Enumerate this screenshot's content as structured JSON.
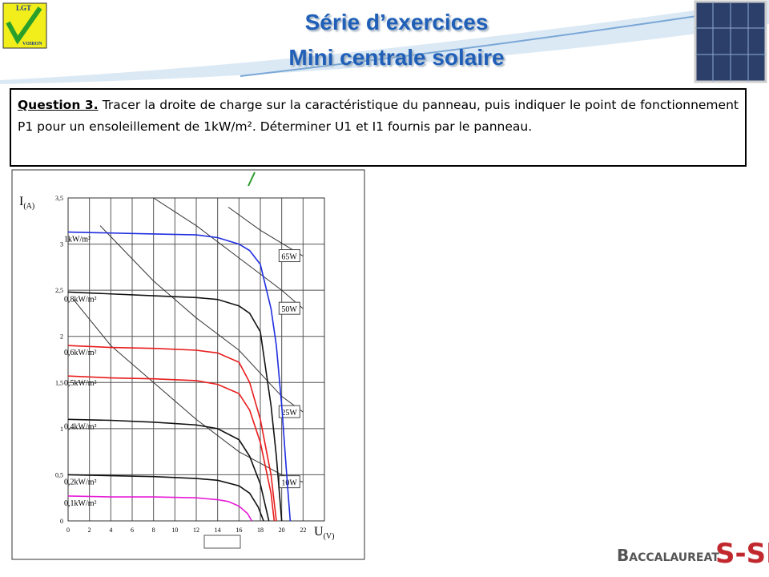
{
  "header": {
    "logo_top": "LGT",
    "logo_bottom": "VOIRON",
    "title_line1": "Série d’exercices",
    "title_line2": "Mini centrale solaire"
  },
  "question": {
    "label": "Question 3.",
    "text": "Tracer la droite de charge sur la caractéristique du panneau, puis indiquer le point de fonctionnement P1 pour un ensoleillement de 1kW/m². Déterminer U1 et I1 fournis par le panneau."
  },
  "footer": {
    "left": "Baccalaureat",
    "right": "S-SI"
  },
  "chart_data": {
    "type": "line",
    "y_label": {
      "main": "I",
      "sub": "(A)"
    },
    "x_label": {
      "main": "U",
      "sub": "(V)"
    },
    "xlim": [
      0,
      24
    ],
    "xticks": [
      0,
      2,
      4,
      6,
      8,
      10,
      12,
      14,
      16,
      18,
      20,
      22
    ],
    "ylim": [
      0,
      3.5
    ],
    "yticks": [
      0,
      {
        "value": 0.5,
        "label": "0,5"
      },
      1,
      {
        "value": 1.5,
        "label": "1,5"
      },
      2,
      {
        "value": 2.5,
        "label": "2,5"
      },
      3,
      {
        "value": 3.5,
        "label": "3,5"
      }
    ],
    "grid": true,
    "series": [
      {
        "name": "1kW/m²",
        "color": "#1f2ee0",
        "x": [
          0,
          4,
          8,
          12,
          14,
          16,
          17,
          18,
          19,
          19.5,
          20,
          20.5,
          20.8
        ],
        "values": [
          3.13,
          3.12,
          3.11,
          3.1,
          3.07,
          3.0,
          2.93,
          2.78,
          2.3,
          1.9,
          1.25,
          0.45,
          0
        ]
      },
      {
        "name": "0,8kW/m²",
        "color": "#111111",
        "x": [
          0,
          4,
          8,
          12,
          14,
          16,
          17,
          18,
          19,
          19.5,
          20
        ],
        "values": [
          2.48,
          2.46,
          2.44,
          2.42,
          2.4,
          2.33,
          2.25,
          2.05,
          1.25,
          0.7,
          0
        ]
      },
      {
        "name": "0,6kW/m²",
        "color": "#e81c1c",
        "x": [
          0,
          4,
          8,
          12,
          14,
          16,
          17,
          18,
          19,
          19.5
        ],
        "values": [
          1.9,
          1.88,
          1.87,
          1.85,
          1.82,
          1.72,
          1.5,
          1.1,
          0.5,
          0
        ]
      },
      {
        "name": "0,5kW/m²",
        "color": "#e81c1c",
        "x": [
          0,
          4,
          8,
          12,
          14,
          16,
          17,
          18,
          19,
          19.3
        ],
        "values": [
          1.57,
          1.55,
          1.54,
          1.52,
          1.48,
          1.38,
          1.2,
          0.85,
          0.3,
          0
        ]
      },
      {
        "name": "0,4kW/m²",
        "color": "#111111",
        "x": [
          0,
          4,
          8,
          12,
          14,
          16,
          17,
          18,
          18.8
        ],
        "values": [
          1.1,
          1.09,
          1.07,
          1.04,
          1.0,
          0.88,
          0.7,
          0.4,
          0
        ]
      },
      {
        "name": "0,2kW/m²",
        "color": "#111111",
        "x": [
          0,
          4,
          8,
          12,
          14,
          16,
          17,
          17.8,
          18.3
        ],
        "values": [
          0.5,
          0.49,
          0.48,
          0.46,
          0.44,
          0.38,
          0.3,
          0.15,
          0
        ]
      },
      {
        "name": "0,1kW/m²",
        "color": "#e619d6",
        "x": [
          0,
          4,
          8,
          12,
          14,
          15,
          16,
          16.8,
          17.2
        ],
        "values": [
          0.27,
          0.26,
          0.26,
          0.25,
          0.23,
          0.21,
          0.16,
          0.08,
          0
        ]
      }
    ],
    "power_curves": [
      {
        "name": "65W",
        "color": "#333333",
        "x": [
          15,
          18,
          22
        ],
        "values": [
          3.4,
          3.15,
          2.87
        ]
      },
      {
        "name": "50W",
        "color": "#333333",
        "x": [
          8,
          12,
          16,
          20,
          22
        ],
        "values": [
          3.5,
          3.2,
          2.85,
          2.5,
          2.3
        ]
      },
      {
        "name": "25W",
        "color": "#333333",
        "x": [
          3,
          8,
          12,
          16,
          20,
          22
        ],
        "values": [
          3.2,
          2.6,
          2.2,
          1.85,
          1.35,
          1.18
        ]
      },
      {
        "name": "10W",
        "color": "#333333",
        "x": [
          0.5,
          4,
          8,
          12,
          16,
          20,
          22
        ],
        "values": [
          2.4,
          1.9,
          1.5,
          1.1,
          0.75,
          0.5,
          0.42
        ]
      }
    ]
  }
}
